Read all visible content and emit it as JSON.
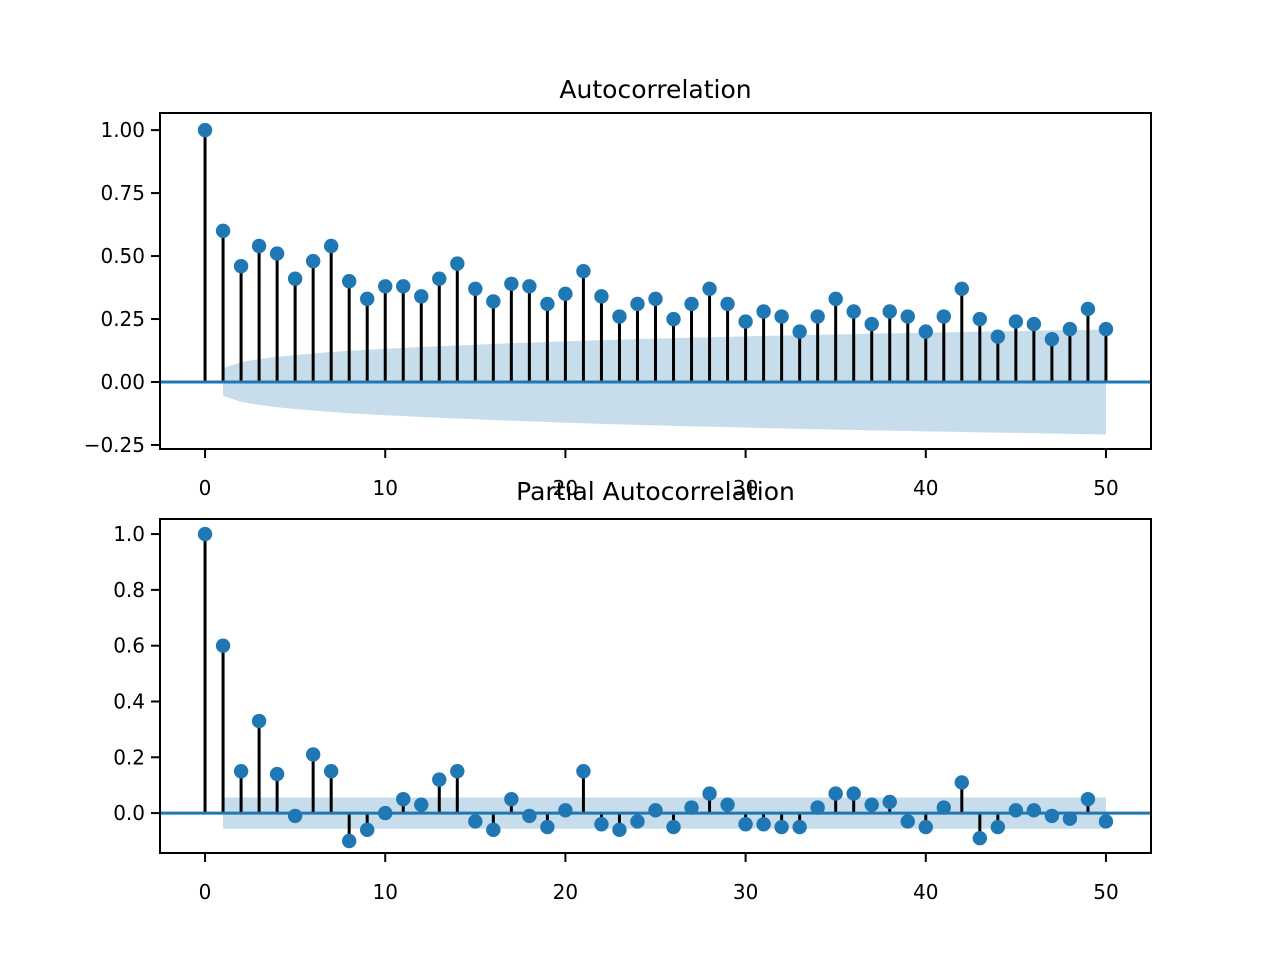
{
  "figure": {
    "background": "#ffffff",
    "colors": {
      "marker": "#1f77b4",
      "stem": "#000000",
      "zero_line": "#1f77b4",
      "band": "#1f77b4",
      "band_opacity": 0.25,
      "spine": "#000000",
      "text": "#000000"
    }
  },
  "chart_data": [
    {
      "type": "stem",
      "title": "Autocorrelation",
      "x": [
        0,
        1,
        2,
        3,
        4,
        5,
        6,
        7,
        8,
        9,
        10,
        11,
        12,
        13,
        14,
        15,
        16,
        17,
        18,
        19,
        20,
        21,
        22,
        23,
        24,
        25,
        26,
        27,
        28,
        29,
        30,
        31,
        32,
        33,
        34,
        35,
        36,
        37,
        38,
        39,
        40,
        41,
        42,
        43,
        44,
        45,
        46,
        47,
        48,
        49,
        50
      ],
      "values": [
        1.0,
        0.6,
        0.46,
        0.54,
        0.51,
        0.41,
        0.48,
        0.54,
        0.4,
        0.33,
        0.38,
        0.38,
        0.34,
        0.41,
        0.47,
        0.37,
        0.32,
        0.39,
        0.38,
        0.31,
        0.35,
        0.44,
        0.34,
        0.26,
        0.31,
        0.33,
        0.25,
        0.31,
        0.37,
        0.31,
        0.24,
        0.28,
        0.26,
        0.2,
        0.26,
        0.33,
        0.28,
        0.23,
        0.28,
        0.26,
        0.2,
        0.26,
        0.37,
        0.25,
        0.18,
        0.24,
        0.23,
        0.17,
        0.21,
        0.29,
        0.21
      ],
      "band": {
        "start_lag": 1,
        "symmetric": true,
        "upper": [
          0.055,
          0.079,
          0.091,
          0.1,
          0.107,
          0.113,
          0.119,
          0.124,
          0.128,
          0.132,
          0.135,
          0.139,
          0.142,
          0.145,
          0.148,
          0.151,
          0.154,
          0.156,
          0.159,
          0.162,
          0.164,
          0.166,
          0.168,
          0.17,
          0.172,
          0.174,
          0.176,
          0.177,
          0.179,
          0.181,
          0.183,
          0.184,
          0.186,
          0.187,
          0.189,
          0.19,
          0.192,
          0.193,
          0.194,
          0.196,
          0.197,
          0.198,
          0.2,
          0.201,
          0.202,
          0.203,
          0.205,
          0.206,
          0.207,
          0.208
        ]
      },
      "xlim": [
        -2.5,
        52.5
      ],
      "ylim": [
        -0.266,
        1.068
      ],
      "xticks": [
        0,
        10,
        20,
        30,
        40,
        50
      ],
      "xtick_labels": [
        "0",
        "10",
        "20",
        "30",
        "40",
        "50"
      ],
      "ytick_values": [
        1.0,
        0.75,
        0.5,
        0.25,
        0.0,
        -0.25
      ],
      "ytick_labels": [
        "1.00",
        "0.75",
        "0.50",
        "0.25",
        "0.00",
        "−0.25"
      ],
      "grid": false,
      "legend": null
    },
    {
      "type": "stem",
      "title": "Partial Autocorrelation",
      "x": [
        0,
        1,
        2,
        3,
        4,
        5,
        6,
        7,
        8,
        9,
        10,
        11,
        12,
        13,
        14,
        15,
        16,
        17,
        18,
        19,
        20,
        21,
        22,
        23,
        24,
        25,
        26,
        27,
        28,
        29,
        30,
        31,
        32,
        33,
        34,
        35,
        36,
        37,
        38,
        39,
        40,
        41,
        42,
        43,
        44,
        45,
        46,
        47,
        48,
        49,
        50
      ],
      "values": [
        1.0,
        0.6,
        0.15,
        0.33,
        0.14,
        -0.01,
        0.21,
        0.15,
        -0.1,
        -0.06,
        0.0,
        0.05,
        0.03,
        0.12,
        0.15,
        -0.03,
        -0.06,
        0.05,
        -0.01,
        -0.05,
        0.01,
        0.15,
        -0.04,
        -0.06,
        -0.03,
        0.01,
        -0.05,
        0.02,
        0.07,
        0.03,
        -0.04,
        -0.04,
        -0.05,
        -0.05,
        0.02,
        0.07,
        0.07,
        0.03,
        0.04,
        -0.03,
        -0.05,
        0.02,
        0.11,
        -0.09,
        -0.05,
        0.01,
        0.01,
        -0.01,
        -0.02,
        0.05,
        -0.03
      ],
      "band": {
        "start_lag": 1,
        "symmetric": true,
        "upper": [
          0.056,
          0.056,
          0.056,
          0.056,
          0.056,
          0.056,
          0.056,
          0.056,
          0.056,
          0.056,
          0.056,
          0.056,
          0.056,
          0.056,
          0.056,
          0.056,
          0.056,
          0.056,
          0.056,
          0.056,
          0.056,
          0.056,
          0.056,
          0.056,
          0.056,
          0.056,
          0.056,
          0.056,
          0.056,
          0.056,
          0.056,
          0.056,
          0.056,
          0.056,
          0.056,
          0.056,
          0.056,
          0.056,
          0.056,
          0.056,
          0.056,
          0.056,
          0.056,
          0.056,
          0.056,
          0.056,
          0.056,
          0.056,
          0.056,
          0.056
        ]
      },
      "xlim": [
        -2.5,
        52.5
      ],
      "ylim": [
        -0.143,
        1.054
      ],
      "xticks": [
        0,
        10,
        20,
        30,
        40,
        50
      ],
      "xtick_labels": [
        "0",
        "10",
        "20",
        "30",
        "40",
        "50"
      ],
      "ytick_values": [
        1.0,
        0.8,
        0.6,
        0.4,
        0.2,
        0.0
      ],
      "ytick_labels": [
        "1.0",
        "0.8",
        "0.6",
        "0.4",
        "0.2",
        "0.0"
      ],
      "grid": false,
      "legend": null
    }
  ]
}
